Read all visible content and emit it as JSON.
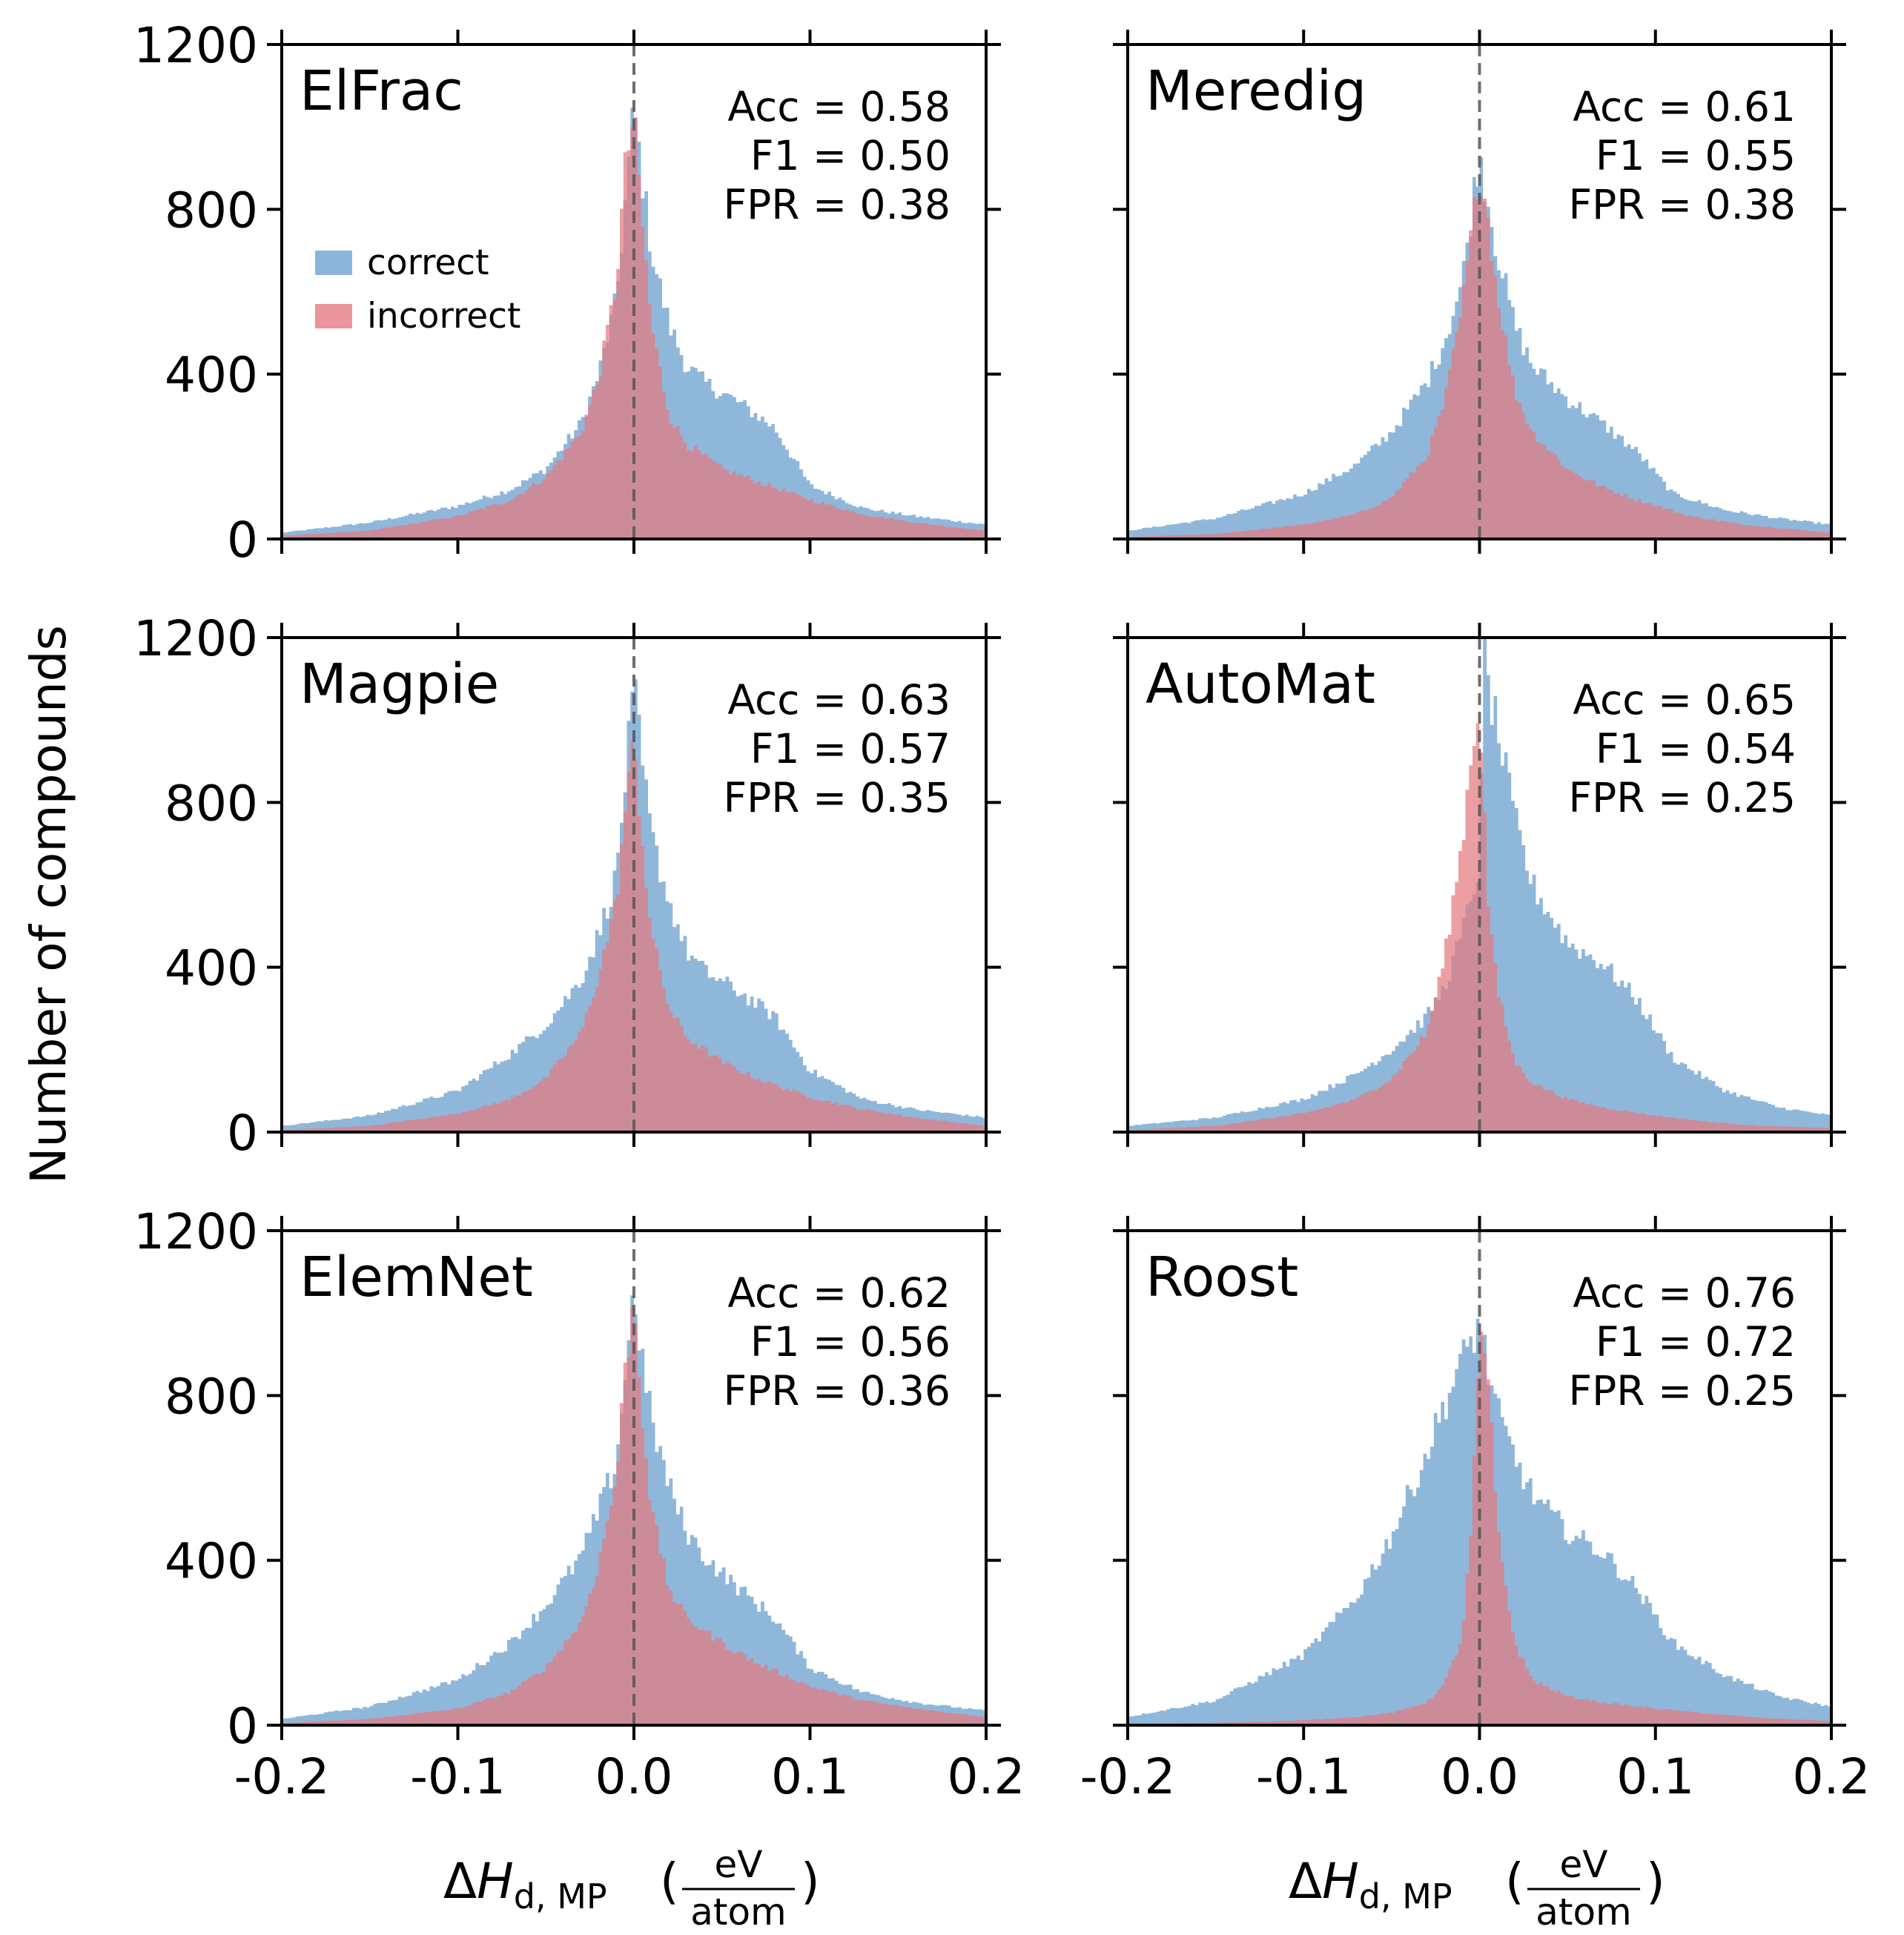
{
  "figure": {
    "ylabel": "Number of compounds",
    "xlabel_parts": {
      "delta": "Δ",
      "H": "H",
      "sub": "d, MP",
      "open": "(",
      "num": "eV",
      "den": "atom",
      "close": ")"
    }
  },
  "legend": {
    "correct": "correct",
    "incorrect": "incorrect"
  },
  "colors": {
    "correct": "#6fa3cf",
    "incorrect": "#e37a80",
    "overlap": "#b06e7d",
    "reference_line": "#555555"
  },
  "chart_data": {
    "type": "histogram",
    "xlim": [
      -0.2,
      0.2
    ],
    "ylim": [
      0,
      1200
    ],
    "x_ticks": [
      "-0.2",
      "-0.1",
      "0.0",
      "0.1",
      "0.2"
    ],
    "y_ticks": [
      "0",
      "400",
      "800",
      "1200"
    ],
    "reference_line_x": 0.0,
    "series_names": [
      "correct",
      "incorrect"
    ],
    "panels": [
      {
        "name": "ElFrac",
        "acc": "Acc = 0.58",
        "f1": "F1 = 0.50",
        "fpr": "FPR = 0.38",
        "correct": {
          "x": [
            -0.2,
            -0.15,
            -0.1,
            -0.07,
            -0.05,
            -0.03,
            -0.02,
            -0.01,
            0.0,
            0.005,
            0.01,
            0.02,
            0.03,
            0.04,
            0.06,
            0.08,
            0.1,
            0.13,
            0.16,
            0.2
          ],
          "y": [
            15,
            40,
            80,
            120,
            170,
            280,
            400,
            580,
            1050,
            870,
            700,
            520,
            420,
            380,
            330,
            270,
            130,
            75,
            55,
            35
          ]
        },
        "incorrect": {
          "x": [
            -0.2,
            -0.15,
            -0.1,
            -0.07,
            -0.05,
            -0.03,
            -0.02,
            -0.01,
            -0.005,
            0.0,
            0.005,
            0.01,
            0.02,
            0.03,
            0.05,
            0.07,
            0.1,
            0.13,
            0.16,
            0.2
          ],
          "y": [
            8,
            20,
            55,
            95,
            150,
            260,
            390,
            620,
            900,
            1030,
            760,
            520,
            300,
            230,
            170,
            140,
            95,
            60,
            40,
            20
          ]
        }
      },
      {
        "name": "Meredig",
        "acc": "Acc = 0.61",
        "f1": "F1 = 0.55",
        "fpr": "FPR = 0.38",
        "correct": {
          "x": [
            -0.2,
            -0.15,
            -0.1,
            -0.07,
            -0.05,
            -0.03,
            -0.02,
            -0.01,
            0.0,
            0.005,
            0.01,
            0.02,
            0.03,
            0.05,
            0.07,
            0.09,
            0.11,
            0.14,
            0.17,
            0.2
          ],
          "y": [
            20,
            50,
            110,
            180,
            260,
            380,
            480,
            620,
            940,
            820,
            700,
            520,
            420,
            340,
            280,
            210,
            110,
            70,
            50,
            35
          ]
        },
        "incorrect": {
          "x": [
            -0.2,
            -0.15,
            -0.1,
            -0.07,
            -0.05,
            -0.03,
            -0.02,
            -0.01,
            0.0,
            0.005,
            0.01,
            0.02,
            0.03,
            0.05,
            0.07,
            0.09,
            0.12,
            0.15,
            0.2
          ],
          "y": [
            5,
            12,
            35,
            60,
            100,
            200,
            330,
            560,
            900,
            780,
            600,
            360,
            260,
            170,
            125,
            95,
            55,
            35,
            15
          ]
        }
      },
      {
        "name": "Magpie",
        "acc": "Acc = 0.63",
        "f1": "F1 = 0.57",
        "fpr": "FPR = 0.35",
        "correct": {
          "x": [
            -0.2,
            -0.15,
            -0.1,
            -0.07,
            -0.05,
            -0.03,
            -0.02,
            -0.01,
            0.0,
            0.005,
            0.01,
            0.02,
            0.03,
            0.04,
            0.06,
            0.08,
            0.1,
            0.13,
            0.16,
            0.2
          ],
          "y": [
            15,
            40,
            100,
            190,
            260,
            370,
            480,
            620,
            1080,
            880,
            720,
            560,
            440,
            390,
            340,
            280,
            150,
            80,
            55,
            35
          ]
        },
        "incorrect": {
          "x": [
            -0.2,
            -0.15,
            -0.1,
            -0.07,
            -0.05,
            -0.03,
            -0.02,
            -0.01,
            -0.005,
            0.0,
            0.005,
            0.01,
            0.02,
            0.03,
            0.05,
            0.07,
            0.1,
            0.13,
            0.16,
            0.2
          ],
          "y": [
            5,
            15,
            45,
            80,
            130,
            240,
            380,
            560,
            780,
            950,
            700,
            480,
            300,
            230,
            170,
            130,
            85,
            55,
            35,
            15
          ]
        }
      },
      {
        "name": "AutoMat",
        "acc": "Acc = 0.65",
        "f1": "F1 = 0.54",
        "fpr": "FPR = 0.25",
        "correct": {
          "x": [
            -0.2,
            -0.15,
            -0.1,
            -0.07,
            -0.05,
            -0.03,
            -0.02,
            -0.01,
            0.0,
            0.003,
            0.005,
            0.01,
            0.02,
            0.03,
            0.05,
            0.07,
            0.09,
            0.11,
            0.14,
            0.17,
            0.2
          ],
          "y": [
            15,
            35,
            80,
            140,
            200,
            280,
            350,
            480,
            650,
            1180,
            1080,
            980,
            760,
            600,
            460,
            410,
            320,
            180,
            100,
            60,
            40
          ]
        },
        "incorrect": {
          "x": [
            -0.2,
            -0.15,
            -0.1,
            -0.07,
            -0.05,
            -0.03,
            -0.02,
            -0.01,
            -0.005,
            0.0,
            0.005,
            0.01,
            0.02,
            0.03,
            0.05,
            0.07,
            0.1,
            0.13,
            0.16,
            0.2
          ],
          "y": [
            5,
            15,
            45,
            80,
            130,
            240,
            420,
            700,
            900,
            1050,
            560,
            350,
            170,
            120,
            80,
            60,
            40,
            25,
            15,
            10
          ]
        }
      },
      {
        "name": "ElemNet",
        "acc": "Acc = 0.62",
        "f1": "F1 = 0.56",
        "fpr": "FPR = 0.36",
        "correct": {
          "x": [
            -0.2,
            -0.15,
            -0.1,
            -0.07,
            -0.05,
            -0.03,
            -0.02,
            -0.01,
            0.0,
            0.005,
            0.01,
            0.02,
            0.03,
            0.04,
            0.06,
            0.08,
            0.1,
            0.13,
            0.16,
            0.2
          ],
          "y": [
            15,
            45,
            110,
            200,
            290,
            410,
            520,
            640,
            1060,
            880,
            740,
            580,
            470,
            410,
            330,
            260,
            140,
            80,
            55,
            35
          ]
        },
        "incorrect": {
          "x": [
            -0.2,
            -0.15,
            -0.1,
            -0.07,
            -0.05,
            -0.03,
            -0.02,
            -0.01,
            -0.005,
            0.0,
            0.005,
            0.01,
            0.02,
            0.03,
            0.05,
            0.07,
            0.1,
            0.13,
            0.16,
            0.2
          ],
          "y": [
            5,
            15,
            40,
            80,
            140,
            250,
            390,
            600,
            860,
            1040,
            750,
            520,
            330,
            260,
            200,
            150,
            95,
            60,
            40,
            20
          ]
        }
      },
      {
        "name": "Roost",
        "acc": "Acc = 0.76",
        "f1": "F1 = 0.72",
        "fpr": "FPR = 0.25",
        "correct": {
          "x": [
            -0.2,
            -0.15,
            -0.1,
            -0.07,
            -0.05,
            -0.04,
            -0.03,
            -0.02,
            -0.01,
            0.0,
            0.005,
            0.01,
            0.02,
            0.03,
            0.05,
            0.07,
            0.09,
            0.11,
            0.14,
            0.17,
            0.2
          ],
          "y": [
            20,
            60,
            170,
            310,
            460,
            560,
            660,
            780,
            880,
            980,
            860,
            760,
            650,
            560,
            470,
            420,
            330,
            200,
            120,
            70,
            45
          ]
        },
        "incorrect": {
          "x": [
            -0.2,
            -0.15,
            -0.1,
            -0.07,
            -0.05,
            -0.03,
            -0.02,
            -0.01,
            -0.005,
            0.0,
            0.005,
            0.01,
            0.02,
            0.03,
            0.05,
            0.07,
            0.1,
            0.13,
            0.16,
            0.2
          ],
          "y": [
            3,
            6,
            12,
            20,
            30,
            55,
            100,
            210,
            450,
            930,
            850,
            480,
            200,
            110,
            70,
            55,
            40,
            28,
            18,
            10
          ]
        }
      }
    ]
  }
}
